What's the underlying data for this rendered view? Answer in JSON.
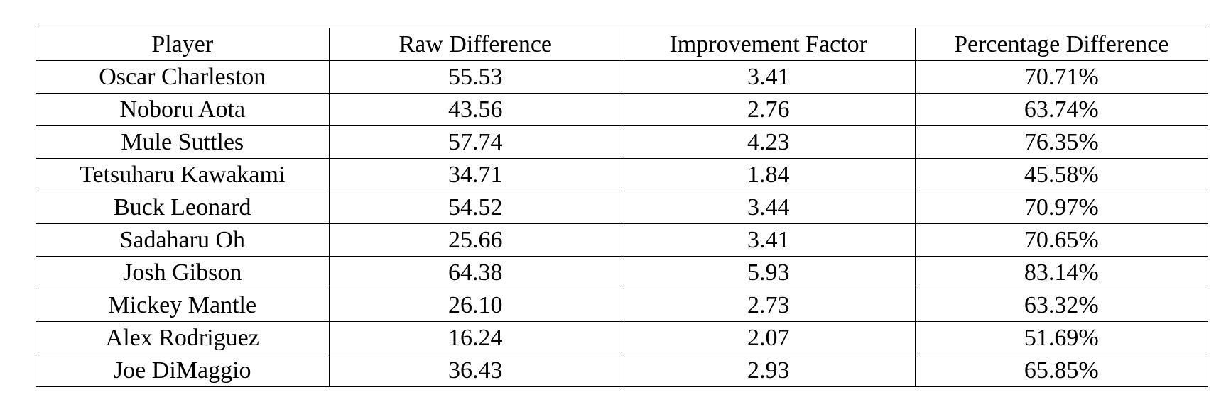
{
  "table": {
    "header": [
      "Player",
      "Raw Difference",
      "Improvement Factor",
      "Percentage Difference"
    ],
    "rows": [
      [
        "Oscar Charleston",
        "55.53",
        "3.41",
        "70.71%"
      ],
      [
        "Noboru Aota",
        "43.56",
        "2.76",
        "63.74%"
      ],
      [
        "Mule Suttles",
        "57.74",
        "4.23",
        "76.35%"
      ],
      [
        "Tetsuharu Kawakami",
        "34.71",
        "1.84",
        "45.58%"
      ],
      [
        "Buck Leonard",
        "54.52",
        "3.44",
        "70.97%"
      ],
      [
        "Sadaharu Oh",
        "25.66",
        "3.41",
        "70.65%"
      ],
      [
        "Josh Gibson",
        "64.38",
        "5.93",
        "83.14%"
      ],
      [
        "Mickey Mantle",
        "26.10",
        "2.73",
        "63.32%"
      ],
      [
        "Alex Rodriguez",
        "16.24",
        "2.07",
        "51.69%"
      ],
      [
        "Joe DiMaggio",
        "36.43",
        "2.93",
        "65.85%"
      ]
    ]
  }
}
